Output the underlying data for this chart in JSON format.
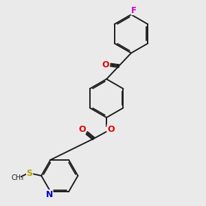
{
  "bg_color": "#eaeaea",
  "bond_color": "#1a1a1a",
  "atom_colors": {
    "O": "#e00000",
    "N": "#0000cc",
    "S": "#b8a000",
    "F": "#cc00cc"
  },
  "bond_lw": 1.4,
  "inner_lw": 1.3,
  "font_size": 8.5
}
